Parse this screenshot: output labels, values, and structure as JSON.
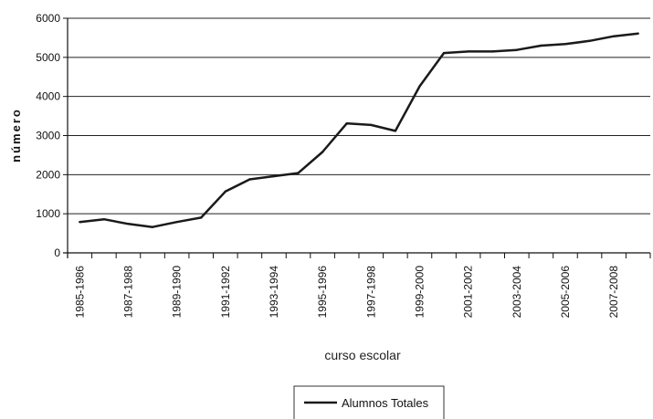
{
  "chart_data": {
    "type": "line",
    "xlabel": "curso escolar",
    "ylabel": "número",
    "ylim": [
      0,
      6000
    ],
    "yticks": [
      0,
      1000,
      2000,
      3000,
      4000,
      5000,
      6000
    ],
    "categories": [
      "1985-1986",
      "1986-1987",
      "1987-1988",
      "1988-1989",
      "1989-1990",
      "1990-1991",
      "1991-1992",
      "1992-1993",
      "1993-1994",
      "1994-1995",
      "1995-1996",
      "1996-1997",
      "1997-1998",
      "1998-1999",
      "1999-2000",
      "2000-2001",
      "2001-2002",
      "2002-2003",
      "2003-2004",
      "2004-2005",
      "2005-2006",
      "2006-2007",
      "2007-2008",
      "2008-2009"
    ],
    "tick_labels_shown": [
      "1985-1986",
      "1987-1988",
      "1989-1990",
      "1991-1992",
      "1993-1994",
      "1995-1996",
      "1997-1998",
      "1999-2000",
      "2001-2002",
      "2003-2004",
      "2005-2006",
      "2007-2008"
    ],
    "series": [
      {
        "name": "Alumnos Totales",
        "values": [
          790,
          860,
          740,
          660,
          790,
          900,
          1570,
          1880,
          1960,
          2040,
          2580,
          3310,
          3270,
          3120,
          4260,
          5110,
          5150,
          5150,
          5190,
          5300,
          5340,
          5420,
          5540,
          5610
        ]
      }
    ],
    "grid": true,
    "legend": "bottom-center",
    "colors": {
      "line": "#1a1a1a",
      "grid": "#222222"
    }
  }
}
